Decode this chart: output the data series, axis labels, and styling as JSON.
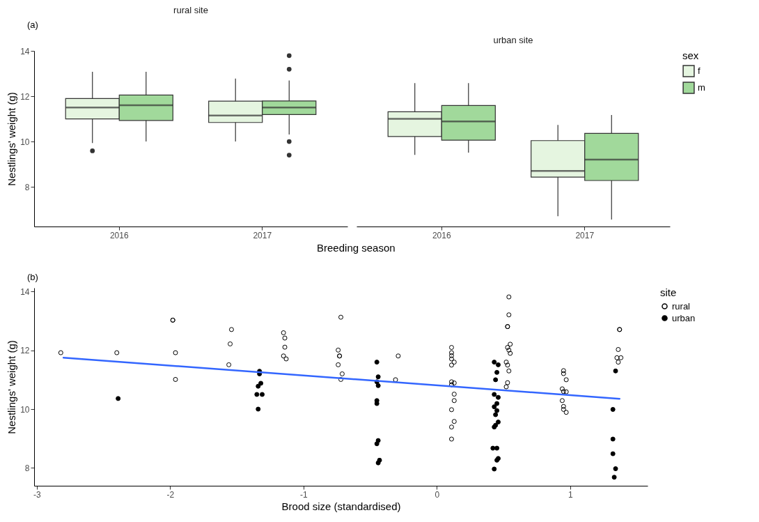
{
  "chart_data": [
    {
      "type": "box",
      "title": "rural site",
      "ylabel": "Nestlings' weight (g)",
      "xlabel": "Breeding season",
      "annotations": [
        "(a)"
      ],
      "categories": [
        "2016",
        "2017"
      ],
      "ylim": [
        6.25,
        14
      ],
      "yticks": [
        8,
        10,
        12,
        14
      ],
      "series": [
        {
          "color": "#e5f5e0",
          "boxes": [
            {
              "low": 9.93,
              "q1": 11.0,
              "median": 11.5,
              "q3": 11.9,
              "high": 13.08,
              "outliers": [
                9.59
              ]
            },
            {
              "low": 10.0,
              "q1": 10.84,
              "median": 11.15,
              "q3": 11.78,
              "high": 12.78
            }
          ]
        },
        {
          "color": "#a1d99b",
          "boxes": [
            {
              "low": 10.0,
              "q1": 10.93,
              "median": 11.6,
              "q3": 12.05,
              "high": 13.08
            },
            {
              "low": 10.31,
              "q1": 11.19,
              "median": 11.5,
              "q3": 11.79,
              "high": 12.69,
              "outliers": [
                13.79,
                13.19,
                10.0,
                9.4
              ]
            }
          ]
        }
      ]
    },
    {
      "type": "box",
      "title": "urban site",
      "legend": "right",
      "legend_title": "sex",
      "tick_labels": "x",
      "categories": [
        "2016",
        "2017"
      ],
      "ylim": [
        6.25,
        14
      ],
      "yticks": [
        8,
        10,
        12,
        14
      ],
      "series": [
        {
          "name": "f",
          "color": "#e5f5e0",
          "boxes": [
            {
              "low": 9.41,
              "q1": 10.22,
              "median": 11.0,
              "q3": 11.31,
              "high": 12.58
            },
            {
              "low": 6.7,
              "q1": 8.43,
              "median": 8.7,
              "q3": 10.04,
              "high": 10.73
            }
          ]
        },
        {
          "name": "m",
          "color": "#a1d99b",
          "boxes": [
            {
              "low": 9.51,
              "q1": 10.06,
              "median": 10.89,
              "q3": 11.59,
              "high": 12.58
            },
            {
              "low": 6.56,
              "q1": 8.28,
              "median": 9.2,
              "q3": 10.36,
              "high": 11.17
            }
          ]
        }
      ]
    },
    {
      "type": "scatter",
      "xlabel": "Brood size (standardised)",
      "ylabel": "Nestlings' weight (g)",
      "legend_title": "site",
      "legend": "right",
      "annotations": [
        "(b)"
      ],
      "xlim": [
        -3.02,
        1.58
      ],
      "xticks": [
        -3,
        -2,
        -1,
        0,
        1
      ],
      "ylim": [
        7.39,
        14.13
      ],
      "yticks": [
        8,
        10,
        12,
        14
      ],
      "series": [
        {
          "name": "rural",
          "color": "#000000",
          "x": [
            -2.82,
            -2.4,
            -1.98,
            -1.98,
            -1.96,
            -1.96,
            -1.54,
            -1.55,
            -1.56,
            -1.15,
            -1.14,
            -1.14,
            -1.15,
            -1.13,
            -0.72,
            -0.74,
            -0.73,
            -0.73,
            -0.74,
            -0.71,
            -0.72,
            -0.29,
            -0.31,
            0.11,
            0.11,
            0.11,
            0.11,
            0.13,
            0.11,
            0.11,
            0.13,
            0.11,
            0.13,
            0.13,
            0.11,
            0.13,
            0.11,
            0.11,
            0.54,
            0.54,
            0.53,
            0.53,
            0.55,
            0.53,
            0.54,
            0.55,
            0.52,
            0.53,
            0.54,
            0.53,
            0.52,
            0.95,
            0.95,
            0.97,
            0.94,
            0.95,
            0.97,
            0.94,
            0.95,
            0.95,
            0.97,
            1.37,
            1.37,
            1.36,
            1.35,
            1.38,
            1.36
          ],
          "values": [
            11.92,
            11.92,
            13.03,
            13.03,
            11.92,
            11.01,
            12.71,
            12.22,
            11.51,
            12.6,
            12.42,
            12.11,
            11.81,
            11.71,
            13.13,
            12.01,
            11.81,
            11.81,
            11.51,
            11.2,
            11.01,
            11.81,
            11.0,
            12.1,
            11.92,
            11.82,
            11.71,
            11.6,
            11.5,
            10.93,
            10.89,
            10.83,
            10.51,
            10.29,
            9.98,
            9.58,
            9.39,
            8.98,
            13.82,
            13.21,
            12.81,
            12.81,
            12.21,
            12.1,
            12.01,
            11.9,
            11.6,
            11.5,
            11.3,
            10.9,
            10.76,
            11.31,
            11.21,
            11.0,
            10.69,
            10.6,
            10.59,
            10.29,
            10.09,
            9.99,
            9.89,
            12.71,
            12.71,
            12.03,
            11.75,
            11.75,
            11.6
          ]
        },
        {
          "name": "urban",
          "color": "#000000",
          "x": [
            -2.39,
            -1.33,
            -1.33,
            -1.32,
            -1.34,
            -1.35,
            -1.31,
            -1.34,
            -0.45,
            -0.44,
            -0.45,
            -0.44,
            -0.45,
            -0.45,
            -0.44,
            -0.45,
            -0.43,
            -0.44,
            0.43,
            0.46,
            0.45,
            0.44,
            0.43,
            0.46,
            0.45,
            0.43,
            0.45,
            0.44,
            0.46,
            0.44,
            0.43,
            0.45,
            0.42,
            0.46,
            0.45,
            0.43,
            1.34,
            1.32,
            1.32,
            1.32,
            1.34,
            1.33
          ],
          "values": [
            10.36,
            11.29,
            11.2,
            10.88,
            10.78,
            10.5,
            10.5,
            10.0,
            11.6,
            11.1,
            10.93,
            10.8,
            10.29,
            10.19,
            8.93,
            8.82,
            8.26,
            8.17,
            11.6,
            11.51,
            11.25,
            11.0,
            10.5,
            10.4,
            10.19,
            10.08,
            9.95,
            9.81,
            9.56,
            9.45,
            9.39,
            8.67,
            8.67,
            8.32,
            8.26,
            7.96,
            11.3,
            9.99,
            8.98,
            8.48,
            7.97,
            7.68
          ]
        },
        {
          "type": "line",
          "color": "#3366ff",
          "x": [
            -2.8,
            1.37
          ],
          "values": [
            11.75,
            10.35
          ]
        }
      ]
    }
  ]
}
